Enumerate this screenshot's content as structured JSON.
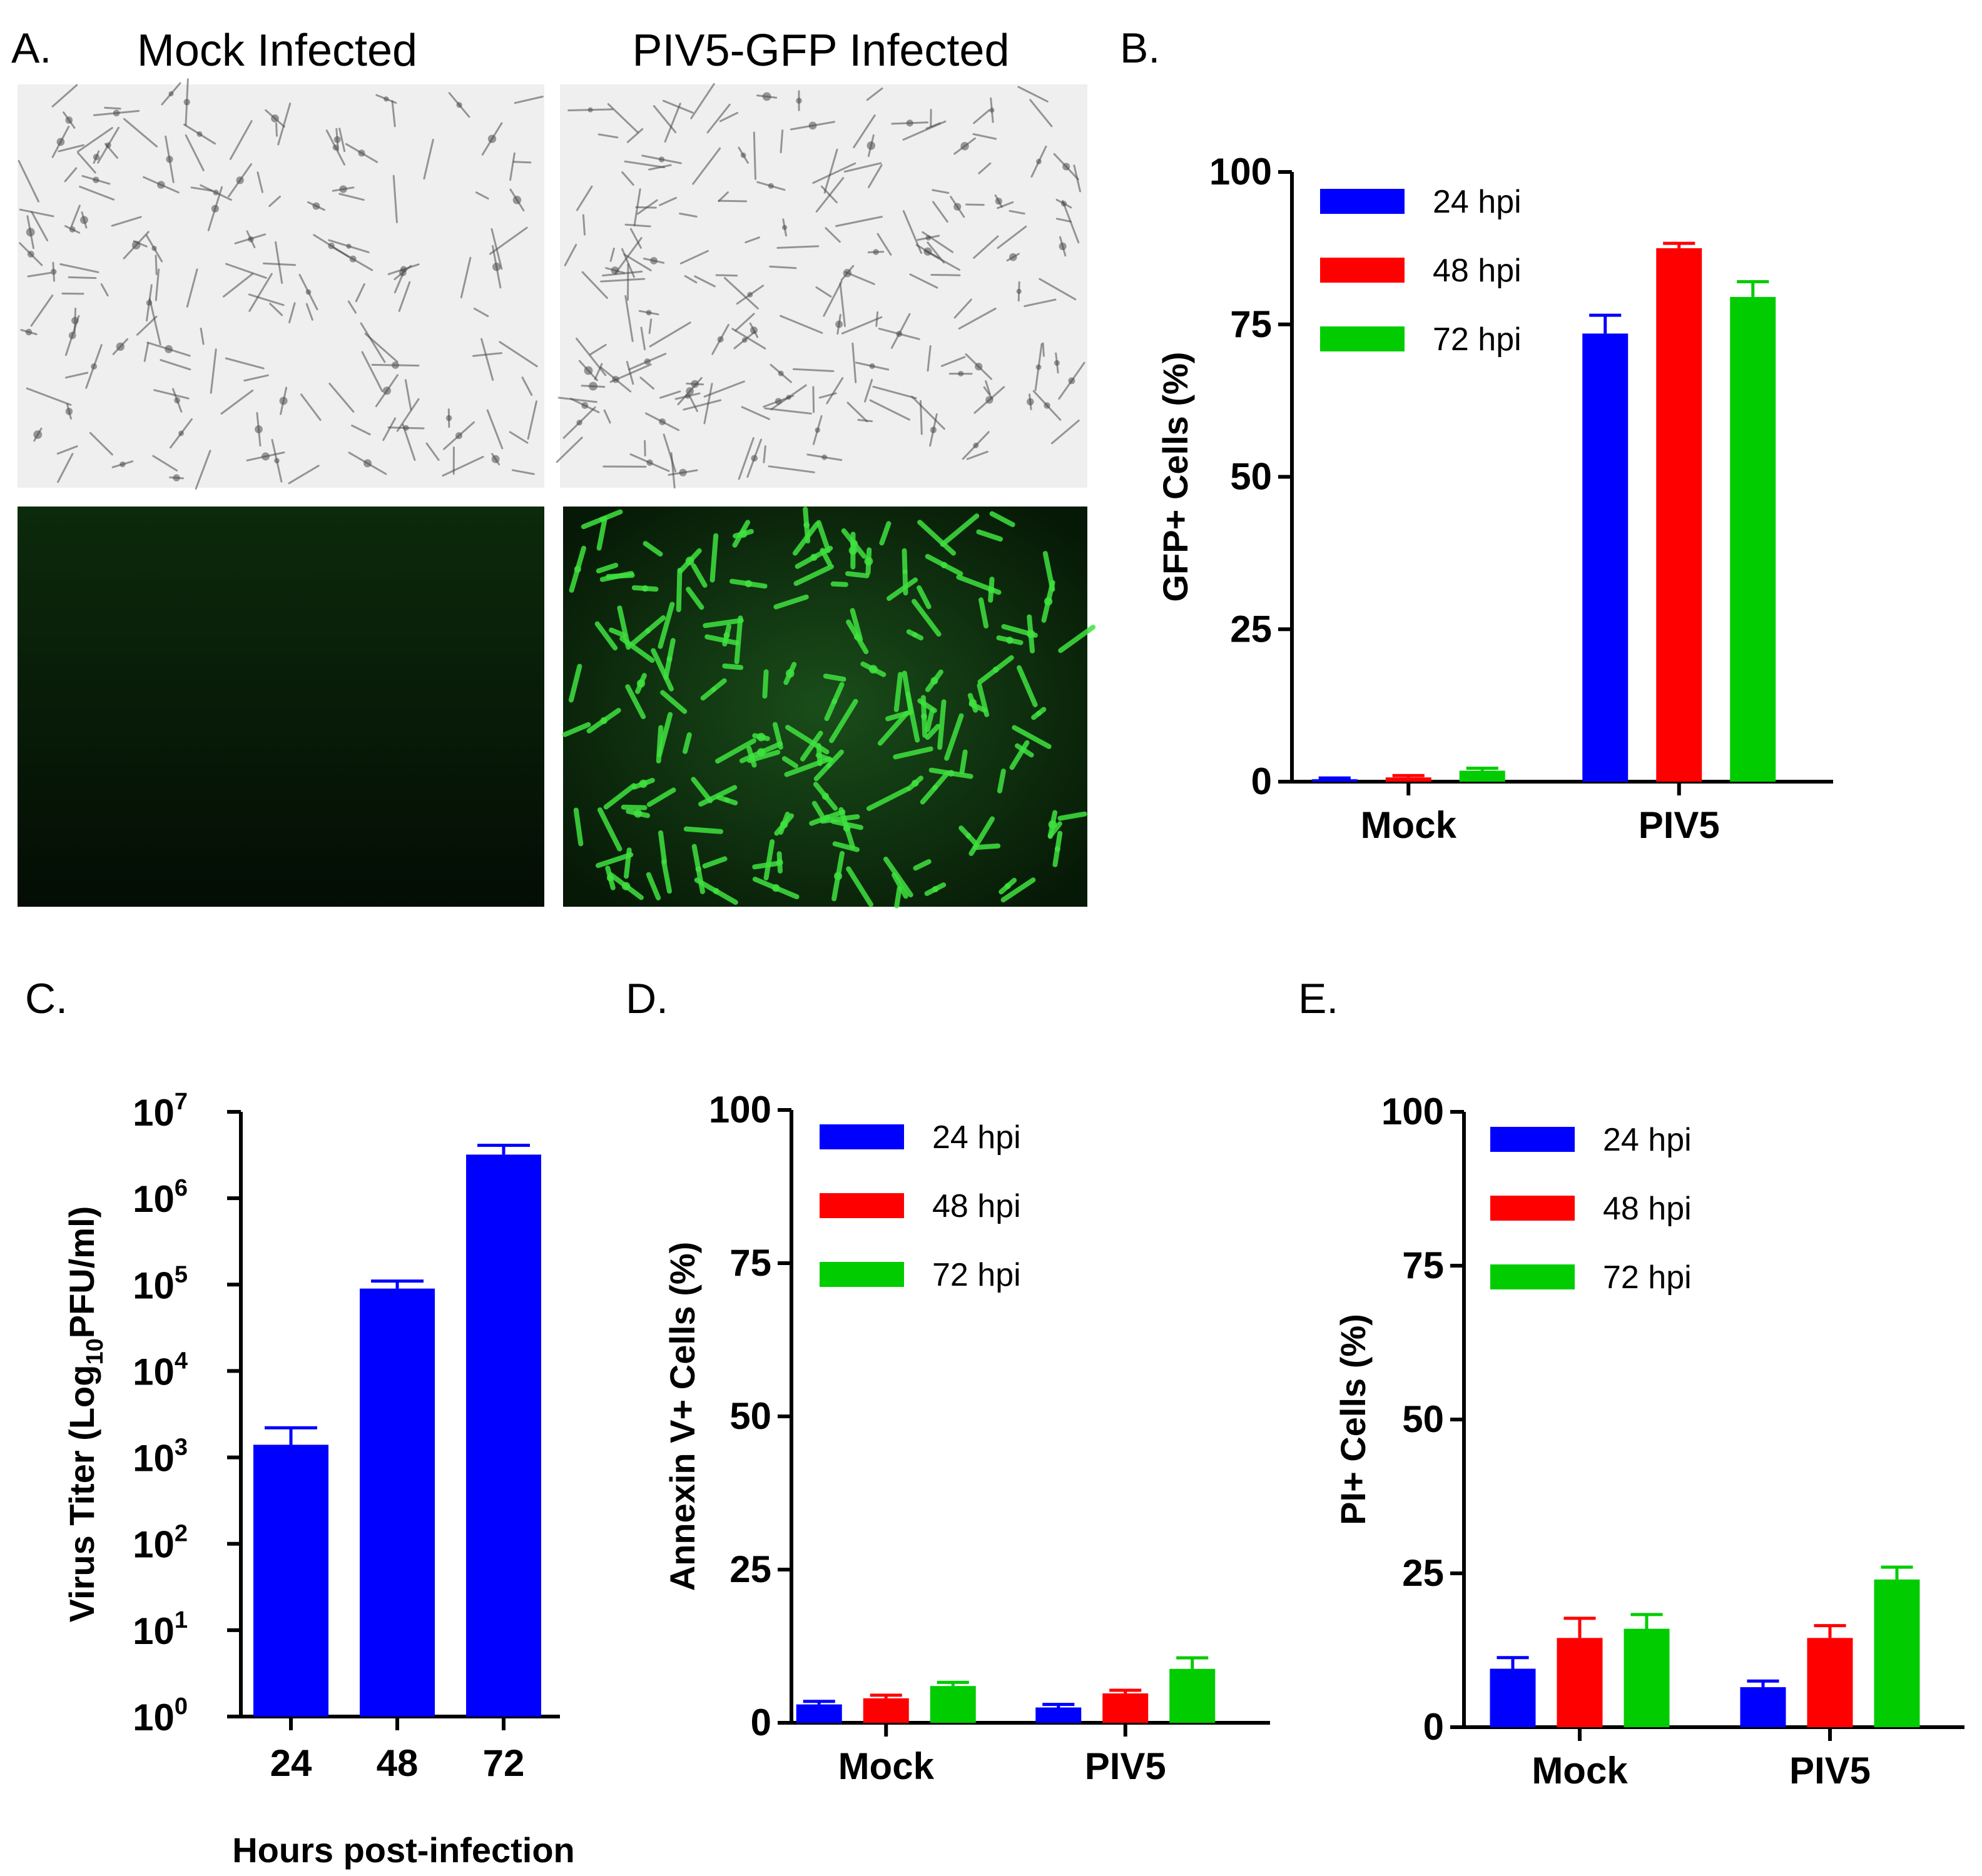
{
  "panel_labels": [
    "A.",
    "B.",
    "C.",
    "D.",
    "E."
  ],
  "micrographs": {
    "mock_title": "Mock Infected",
    "piv5_title": "PIV5-GFP Infected"
  },
  "colors": {
    "24 hpi": "#0000ff",
    "48 hpi": "#ff0000",
    "72 hpi": "#00cc00",
    "gfp_bright": "#3fe23f",
    "brightfield_bg": "#efefef"
  },
  "chart_data": [
    {
      "id": "B",
      "type": "bar",
      "ylabel": "GFP+ Cells (%)",
      "ylim": [
        0,
        100
      ],
      "yticks": [
        0,
        25,
        50,
        75,
        100
      ],
      "categories": [
        "Mock",
        "PIV5"
      ],
      "legend": "top-left",
      "series": [
        {
          "name": "24 hpi",
          "values": [
            0.4,
            73.5
          ],
          "errors": [
            0.2,
            3.0
          ]
        },
        {
          "name": "48 hpi",
          "values": [
            0.7,
            87.5
          ],
          "errors": [
            0.3,
            0.8
          ]
        },
        {
          "name": "72 hpi",
          "values": [
            1.8,
            79.5
          ],
          "errors": [
            0.4,
            2.5
          ]
        }
      ]
    },
    {
      "id": "C",
      "type": "bar",
      "scale": "log",
      "ylabel": "Virus Titer (Log10PFU/ml)",
      "xlabel": "Hours post-infection",
      "ylim": [
        1,
        10000000
      ],
      "yticks": [
        "10^0",
        "10^1",
        "10^2",
        "10^3",
        "10^4",
        "10^5",
        "10^6",
        "10^7"
      ],
      "categories": [
        "24",
        "48",
        "72"
      ],
      "series": [
        {
          "values": [
            1400,
            90000,
            3200000
          ],
          "upper": [
            2200,
            110000,
            4100000
          ]
        }
      ]
    },
    {
      "id": "D",
      "type": "bar",
      "ylabel": "Annexin V+ Cells (%)",
      "ylim": [
        0,
        100
      ],
      "yticks": [
        0,
        25,
        50,
        75,
        100
      ],
      "categories": [
        "Mock",
        "PIV5"
      ],
      "legend": "top-left",
      "series": [
        {
          "name": "24 hpi",
          "values": [
            3.0,
            2.5
          ],
          "errors": [
            0.5,
            0.5
          ]
        },
        {
          "name": "48 hpi",
          "values": [
            4.0,
            4.8
          ],
          "errors": [
            0.5,
            0.5
          ]
        },
        {
          "name": "72 hpi",
          "values": [
            6.0,
            8.8
          ],
          "errors": [
            0.6,
            1.8
          ]
        }
      ]
    },
    {
      "id": "E",
      "type": "bar",
      "ylabel": "PI+ Cells (%)",
      "ylim": [
        0,
        100
      ],
      "yticks": [
        0,
        25,
        50,
        75,
        100
      ],
      "categories": [
        "Mock",
        "PIV5"
      ],
      "legend": "top-left",
      "series": [
        {
          "name": "24 hpi",
          "values": [
            9.5,
            6.5
          ],
          "errors": [
            1.8,
            1.0
          ]
        },
        {
          "name": "48 hpi",
          "values": [
            14.5,
            14.5
          ],
          "errors": [
            3.2,
            2.0
          ]
        },
        {
          "name": "72 hpi",
          "values": [
            16.0,
            24.0
          ],
          "errors": [
            2.3,
            2.0
          ]
        }
      ]
    }
  ]
}
